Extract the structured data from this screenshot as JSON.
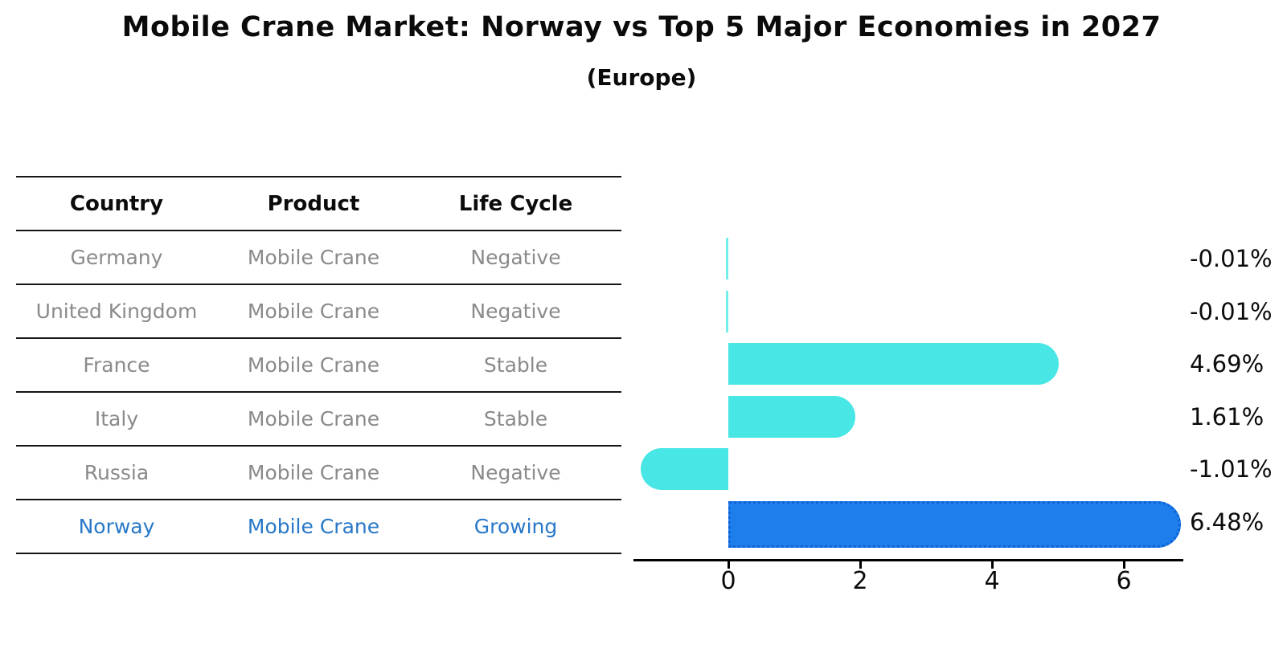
{
  "title": "Mobile Crane Market: Norway vs Top 5 Major Economies in 2027",
  "subtitle": "(Europe)",
  "table": {
    "headers": [
      "Country",
      "Product",
      "Life Cycle"
    ],
    "rows": [
      {
        "country": "Germany",
        "product": "Mobile Crane",
        "life_cycle": "Negative",
        "highlight": false
      },
      {
        "country": "United Kingdom",
        "product": "Mobile Crane",
        "life_cycle": "Negative",
        "highlight": false
      },
      {
        "country": "France",
        "product": "Mobile Crane",
        "life_cycle": "Stable",
        "highlight": false
      },
      {
        "country": "Italy",
        "product": "Mobile Crane",
        "life_cycle": "Stable",
        "highlight": false
      },
      {
        "country": "Russia",
        "product": "Mobile Crane",
        "life_cycle": "Negative",
        "highlight": false
      },
      {
        "country": "Norway",
        "product": "Mobile Crane",
        "life_cycle": "Growing",
        "highlight": true
      }
    ]
  },
  "chart_data": {
    "type": "bar",
    "orientation": "horizontal",
    "title": "Mobile Crane Market: Norway vs Top 5 Major Economies in 2027 (Europe)",
    "categories": [
      "Germany",
      "United Kingdom",
      "France",
      "Italy",
      "Russia",
      "Norway"
    ],
    "values": [
      -0.01,
      -0.01,
      4.69,
      1.61,
      -1.01,
      6.48
    ],
    "value_labels": [
      "-0.01%",
      "-0.01%",
      "4.69%",
      "1.61%",
      "-1.01%",
      "6.48%"
    ],
    "x_ticks": [
      0,
      2,
      4,
      6
    ],
    "xlim": [
      -1.44,
      6.9
    ],
    "grid": false,
    "legend": false,
    "highlight_index": 5,
    "unit": "%"
  },
  "colors": {
    "bar": "#48E6E4",
    "bar_highlight": "#1E7EEB",
    "bar_highlight_border": "#0F62D6",
    "highlight_text": "#2878C8",
    "table_text_gray": "#8a8a8a",
    "table_line": "#151515",
    "axis": "#000000"
  }
}
